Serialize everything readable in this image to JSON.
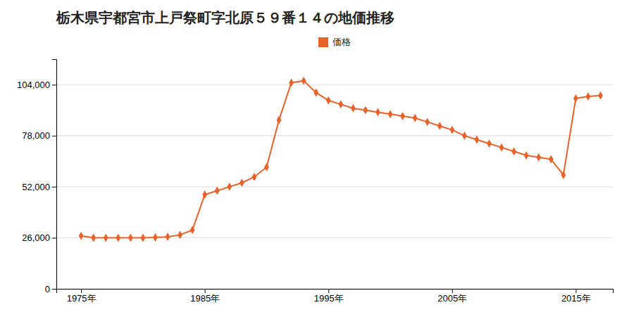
{
  "chart_data": {
    "type": "line",
    "title": "栃木県宇都宮市上戸祭町字北原５９番１４の地価推移",
    "x": [
      1975,
      1976,
      1977,
      1978,
      1979,
      1980,
      1981,
      1982,
      1983,
      1984,
      1985,
      1986,
      1987,
      1988,
      1989,
      1990,
      1991,
      1992,
      1993,
      1994,
      1995,
      1996,
      1997,
      1998,
      1999,
      2000,
      2001,
      2002,
      2003,
      2004,
      2005,
      2006,
      2007,
      2008,
      2009,
      2010,
      2011,
      2012,
      2013,
      2014,
      2015,
      2016,
      2017
    ],
    "series": [
      {
        "name": "価格",
        "color": "#E8622A",
        "marker": "diamond",
        "values": [
          27000,
          26000,
          26000,
          26000,
          26000,
          26000,
          26200,
          26500,
          27500,
          30000,
          48000,
          50000,
          52000,
          54000,
          57000,
          62000,
          86000,
          105000,
          106000,
          100000,
          96000,
          94000,
          92000,
          91000,
          90000,
          89000,
          88000,
          87000,
          85000,
          83000,
          81000,
          78000,
          76000,
          74000,
          72000,
          70000,
          68000,
          67000,
          66000,
          58000,
          97000,
          98000,
          98500
        ]
      }
    ],
    "xlim": [
      1973,
      2018
    ],
    "xticks": [
      {
        "value": 1975,
        "label": "1975年"
      },
      {
        "value": 1985,
        "label": "1985年"
      },
      {
        "value": 1995,
        "label": "1995年"
      },
      {
        "value": 2005,
        "label": "2005年"
      },
      {
        "value": 2015,
        "label": "2015年"
      }
    ],
    "ylim": [
      0,
      117000
    ],
    "yticks": [
      0,
      {
        "value": 26000,
        "label": "26,000"
      },
      {
        "value": 52000,
        "label": "52,000"
      },
      {
        "value": 78000,
        "label": "78,000"
      },
      {
        "value": 104000,
        "label": "104,000"
      }
    ],
    "grid": true,
    "legend": "top"
  }
}
